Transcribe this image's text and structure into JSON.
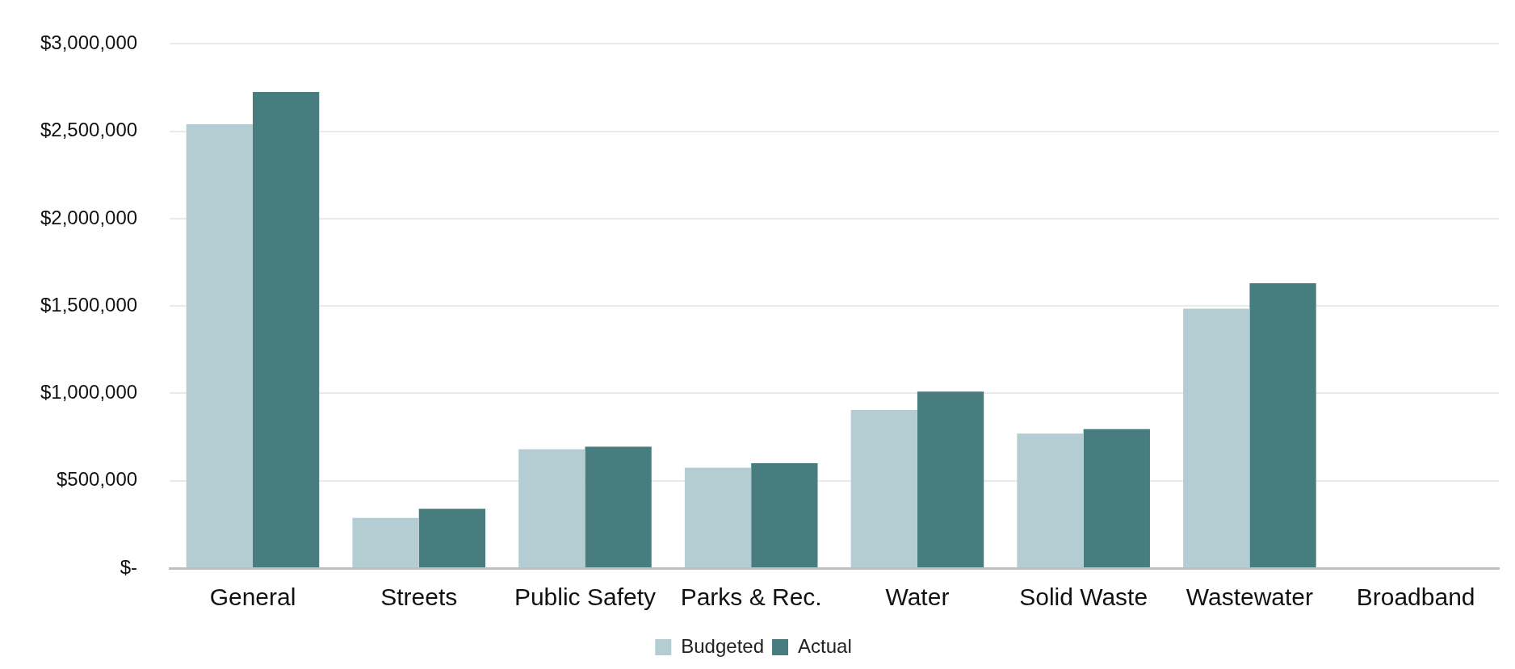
{
  "chart_data": {
    "type": "bar",
    "categories": [
      "General",
      "Streets",
      "Public Safety",
      "Parks & Rec.",
      "Water",
      "Solid Waste",
      "Wastewater",
      "Broadband"
    ],
    "series": [
      {
        "name": "Budgeted",
        "color": "#b4cdd3",
        "values": [
          2540000,
          287000,
          680000,
          575000,
          905000,
          770000,
          1485000,
          0
        ]
      },
      {
        "name": "Actual",
        "color": "#487d80",
        "values": [
          2725000,
          340000,
          695000,
          600000,
          1010000,
          795000,
          1630000,
          0
        ]
      }
    ],
    "ylim": [
      0,
      3000000
    ],
    "yticks": [
      {
        "value": 0,
        "label": "$-"
      },
      {
        "value": 500000,
        "label": "$500,000"
      },
      {
        "value": 1000000,
        "label": "$1,000,000"
      },
      {
        "value": 1500000,
        "label": "$1,500,000"
      },
      {
        "value": 2000000,
        "label": "$2,000,000"
      },
      {
        "value": 2500000,
        "label": "$2,500,000"
      },
      {
        "value": 3000000,
        "label": "$3,000,000"
      }
    ],
    "grid": "y",
    "legend": "bottom"
  }
}
